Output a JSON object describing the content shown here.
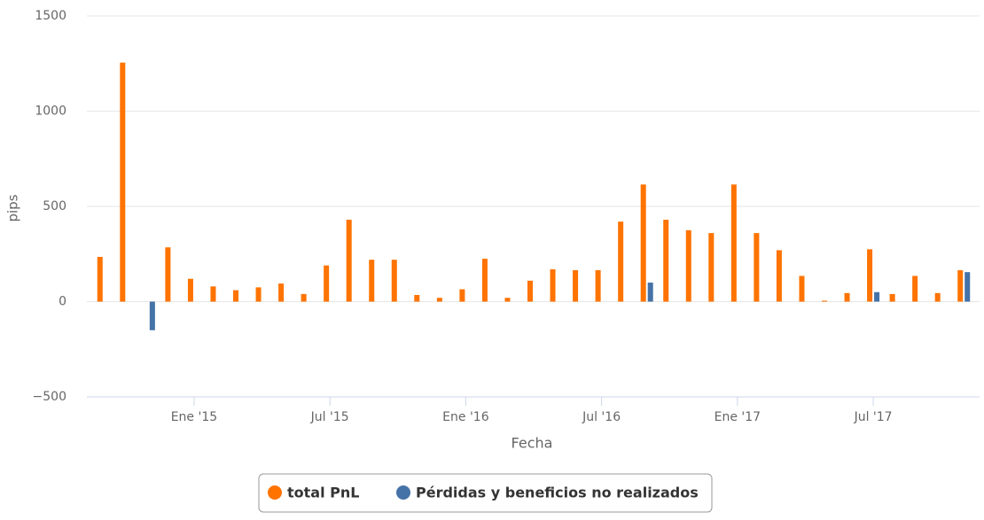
{
  "chart_data": {
    "type": "bar",
    "x_label": "Fecha",
    "y_label": "pips",
    "categories": [
      null,
      null,
      null,
      null,
      "Ene '15",
      null,
      null,
      null,
      null,
      null,
      "Jul '15",
      null,
      null,
      null,
      null,
      null,
      "Ene '16",
      null,
      null,
      null,
      null,
      null,
      "Jul '16",
      null,
      null,
      null,
      null,
      null,
      "Ene '17",
      null,
      null,
      null,
      null,
      null,
      "Jul '17",
      null,
      null,
      null,
      null
    ],
    "series": [
      {
        "name": "total PnL",
        "color": "#ff7300",
        "values": [
          235,
          1255,
          null,
          285,
          120,
          80,
          60,
          75,
          95,
          40,
          190,
          430,
          220,
          220,
          35,
          20,
          65,
          225,
          20,
          110,
          170,
          165,
          165,
          420,
          615,
          430,
          375,
          360,
          615,
          360,
          270,
          135,
          5,
          45,
          275,
          40,
          135,
          45,
          165
        ]
      },
      {
        "name": "Pérdidas y beneficios no realizados",
        "color": "#4572a7",
        "values": [
          null,
          null,
          -150,
          null,
          null,
          null,
          null,
          null,
          null,
          null,
          null,
          null,
          null,
          null,
          null,
          null,
          null,
          null,
          null,
          null,
          null,
          null,
          null,
          null,
          100,
          null,
          null,
          null,
          null,
          null,
          null,
          null,
          null,
          null,
          50,
          null,
          null,
          null,
          155
        ]
      }
    ],
    "ylim": [
      -500,
      1500
    ],
    "yticks": [
      {
        "value": -500,
        "label": "−500"
      },
      0,
      500,
      1000,
      1500
    ],
    "grid": true
  }
}
